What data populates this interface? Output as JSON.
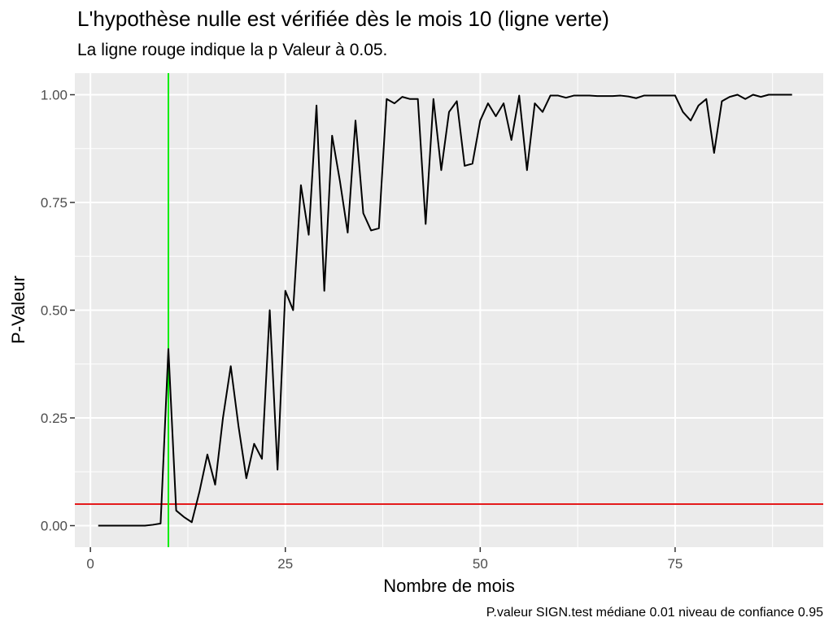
{
  "chart_data": {
    "type": "line",
    "title": "L'hypothèse nulle est vérifiée dès le mois 10 (ligne verte)",
    "subtitle": "La ligne rouge indique la p Valeur à 0.05.",
    "caption": "P.valeur SIGN.test médiane  0.01  niveau de confiance  0.95",
    "xlabel": "Nombre de mois",
    "ylabel": "P-Valeur",
    "xlim": [
      -2,
      94
    ],
    "ylim": [
      -0.05,
      1.05
    ],
    "x_ticks": [
      0,
      25,
      50,
      75
    ],
    "x_tick_labels": [
      "0",
      "25",
      "50",
      "75"
    ],
    "y_ticks": [
      0,
      0.25,
      0.5,
      0.75,
      1
    ],
    "y_tick_labels": [
      "0.00",
      "0.25",
      "0.50",
      "0.75",
      "1.00"
    ],
    "grid": true,
    "hline": {
      "y": 0.05,
      "color": "#e41a1c"
    },
    "vline": {
      "x": 10,
      "color": "#00ee00"
    },
    "series_color": "#000000",
    "x": [
      1,
      2,
      3,
      4,
      5,
      6,
      7,
      8,
      9,
      10,
      11,
      12,
      13,
      14,
      15,
      16,
      17,
      18,
      19,
      20,
      21,
      22,
      23,
      24,
      25,
      26,
      27,
      28,
      29,
      30,
      31,
      32,
      33,
      34,
      35,
      36,
      37,
      38,
      39,
      40,
      41,
      42,
      43,
      44,
      45,
      46,
      47,
      48,
      49,
      50,
      51,
      52,
      53,
      54,
      55,
      56,
      57,
      58,
      59,
      60,
      61,
      62,
      63,
      64,
      65,
      66,
      67,
      68,
      69,
      70,
      71,
      72,
      73,
      74,
      75,
      76,
      77,
      78,
      79,
      80,
      81,
      82,
      83,
      84,
      85,
      86,
      87,
      88,
      89,
      90
    ],
    "y": [
      0,
      0,
      0,
      0,
      0,
      0,
      0,
      0.002,
      0.005,
      0.41,
      0.035,
      0.02,
      0.008,
      0.08,
      0.165,
      0.095,
      0.25,
      0.37,
      0.23,
      0.11,
      0.19,
      0.155,
      0.5,
      0.13,
      0.545,
      0.5,
      0.79,
      0.675,
      0.975,
      0.545,
      0.905,
      0.8,
      0.68,
      0.94,
      0.725,
      0.685,
      0.69,
      0.99,
      0.98,
      0.995,
      0.99,
      0.99,
      0.7,
      0.99,
      0.825,
      0.96,
      0.985,
      0.835,
      0.84,
      0.94,
      0.98,
      0.95,
      0.98,
      0.895,
      0.998,
      0.825,
      0.98,
      0.96,
      0.998,
      0.998,
      0.993,
      0.998,
      0.998,
      0.998,
      0.997,
      0.997,
      0.997,
      0.998,
      0.996,
      0.992,
      0.998,
      0.998,
      0.998,
      0.998,
      0.998,
      0.96,
      0.94,
      0.975,
      0.99,
      0.865,
      0.985,
      0.995,
      1.0,
      0.99,
      1.0,
      0.995,
      1.0,
      1.0,
      1.0,
      1.0
    ]
  }
}
